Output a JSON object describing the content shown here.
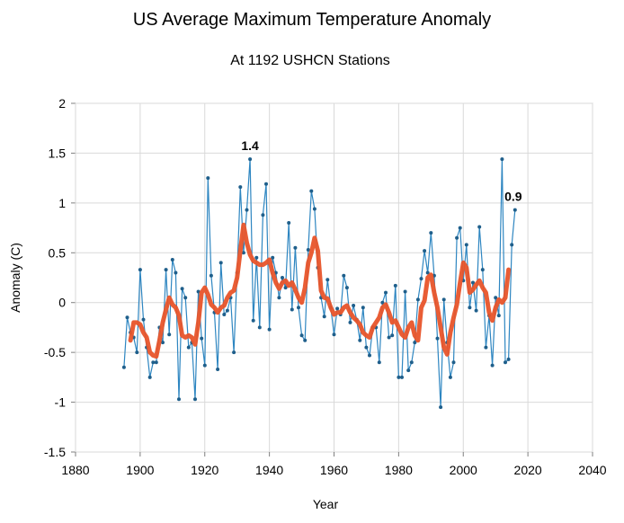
{
  "chart_data": {
    "type": "line",
    "title": "US Average Maximum Temperature Anomaly",
    "subtitle": "At 1192 USHCN Stations",
    "xlabel": "Year",
    "ylabel": "Anomaly (C)",
    "xlim": [
      1880,
      2040
    ],
    "ylim": [
      -1.5,
      2
    ],
    "xticks": [
      1880,
      1900,
      1920,
      1940,
      1960,
      1980,
      2000,
      2020,
      2040
    ],
    "yticks": [
      -1.5,
      -1,
      -0.5,
      0,
      0.5,
      1,
      1.5,
      2
    ],
    "xtick_labels": [
      "1880",
      "1900",
      "1920",
      "1940",
      "1960",
      "1980",
      "2000",
      "2020",
      "2040"
    ],
    "ytick_labels": [
      "-1.5",
      "-1",
      "-0.5",
      "0",
      "0.5",
      "1",
      "1.5",
      "2"
    ],
    "grid": true,
    "colors": {
      "annual": "#2e86c1",
      "smoothed": "#e8542a",
      "grid": "#d9d9d9"
    },
    "annotations": [
      {
        "text": "1.4",
        "x": 1934,
        "y": 1.44
      },
      {
        "text": "0.9",
        "x": 2016,
        "y": 0.93
      }
    ],
    "series": [
      {
        "x": [
          1895,
          1896,
          1897,
          1898,
          1899,
          1900,
          1901,
          1902,
          1903,
          1904,
          1905,
          1906,
          1907,
          1908,
          1909,
          1910,
          1911,
          1912,
          1913,
          1914,
          1915,
          1916,
          1917,
          1918,
          1919,
          1920,
          1921,
          1922,
          1923,
          1924,
          1925,
          1926,
          1927,
          1928,
          1929,
          1930,
          1931,
          1932,
          1933,
          1934,
          1935,
          1936,
          1937,
          1938,
          1939,
          1940,
          1941,
          1942,
          1943,
          1944,
          1945,
          1946,
          1947,
          1948,
          1949,
          1950,
          1951,
          1952,
          1953,
          1954,
          1955,
          1956,
          1957,
          1958,
          1959,
          1960,
          1961,
          1962,
          1963,
          1964,
          1965,
          1966,
          1967,
          1968,
          1969,
          1970,
          1971,
          1972,
          1973,
          1974,
          1975,
          1976,
          1977,
          1978,
          1979,
          1980,
          1981,
          1982,
          1983,
          1984,
          1985,
          1986,
          1987,
          1988,
          1989,
          1990,
          1991,
          1992,
          1993,
          1994,
          1995,
          1996,
          1997,
          1998,
          1999,
          2000,
          2001,
          2002,
          2003,
          2004,
          2005,
          2006,
          2007,
          2008,
          2009,
          2010,
          2011,
          2012,
          2013,
          2014,
          2015,
          2016
        ],
        "y": [
          -0.65,
          -0.15,
          -0.3,
          -0.35,
          -0.5,
          0.33,
          -0.17,
          -0.45,
          -0.75,
          -0.6,
          -0.6,
          -0.25,
          -0.4,
          0.33,
          -0.32,
          0.43,
          0.3,
          -0.97,
          0.14,
          0.05,
          -0.45,
          -0.4,
          -0.97,
          0.11,
          -0.36,
          -0.63,
          1.25,
          0.27,
          -0.1,
          -0.67,
          0.4,
          -0.12,
          -0.08,
          0.05,
          -0.5,
          0.3,
          1.16,
          0.5,
          0.93,
          1.44,
          -0.18,
          0.45,
          -0.25,
          0.88,
          1.19,
          -0.27,
          0.45,
          0.3,
          0.05,
          0.25,
          0.15,
          0.8,
          -0.07,
          0.55,
          -0.05,
          -0.33,
          -0.38,
          0.53,
          1.12,
          0.94,
          0.35,
          0.05,
          -0.14,
          0.23,
          -0.05,
          -0.32,
          -0.06,
          -0.12,
          0.27,
          0.15,
          -0.2,
          -0.03,
          -0.17,
          -0.38,
          -0.05,
          -0.45,
          -0.53,
          -0.25,
          -0.25,
          -0.6,
          0.0,
          0.1,
          -0.35,
          -0.33,
          0.17,
          -0.75,
          -0.75,
          0.11,
          -0.68,
          -0.6,
          -0.4,
          0.03,
          0.24,
          0.52,
          0.3,
          0.7,
          0.27,
          -0.36,
          -1.05,
          0.03,
          -0.4,
          -0.75,
          -0.6,
          0.65,
          0.75,
          0.22,
          0.58,
          -0.05,
          0.2,
          -0.08,
          0.76,
          0.33,
          -0.45,
          -0.13,
          -0.63,
          0.05,
          -0.13,
          1.44,
          -0.6,
          -0.57,
          0.58,
          0.93
        ]
      },
      {
        "x": [
          1897,
          1898,
          1899,
          1900,
          1901,
          1902,
          1903,
          1904,
          1905,
          1906,
          1907,
          1908,
          1909,
          1910,
          1911,
          1912,
          1913,
          1914,
          1915,
          1916,
          1917,
          1918,
          1919,
          1920,
          1921,
          1922,
          1923,
          1924,
          1925,
          1926,
          1927,
          1928,
          1929,
          1930,
          1931,
          1932,
          1933,
          1934,
          1935,
          1936,
          1937,
          1938,
          1939,
          1940,
          1941,
          1942,
          1943,
          1944,
          1945,
          1946,
          1947,
          1948,
          1949,
          1950,
          1951,
          1952,
          1953,
          1954,
          1955,
          1956,
          1957,
          1958,
          1959,
          1960,
          1961,
          1962,
          1963,
          1964,
          1965,
          1966,
          1967,
          1968,
          1969,
          1970,
          1971,
          1972,
          1973,
          1974,
          1975,
          1976,
          1977,
          1978,
          1979,
          1980,
          1981,
          1982,
          1983,
          1984,
          1985,
          1986,
          1987,
          1988,
          1989,
          1990,
          1991,
          1992,
          1993,
          1994,
          1995,
          1996,
          1997,
          1998,
          1999,
          2000,
          2001,
          2002,
          2003,
          2004,
          2005,
          2006,
          2007,
          2008,
          2009,
          2010,
          2011,
          2012,
          2013,
          2014
        ],
        "y": [
          -0.38,
          -0.2,
          -0.2,
          -0.22,
          -0.3,
          -0.35,
          -0.5,
          -0.53,
          -0.54,
          -0.38,
          -0.2,
          -0.07,
          0.05,
          -0.02,
          -0.05,
          -0.13,
          -0.33,
          -0.35,
          -0.33,
          -0.35,
          -0.42,
          -0.2,
          0.1,
          0.15,
          0.08,
          -0.02,
          -0.05,
          -0.1,
          -0.05,
          -0.03,
          0.05,
          0.1,
          0.12,
          0.25,
          0.52,
          0.78,
          0.6,
          0.48,
          0.42,
          0.4,
          0.38,
          0.38,
          0.4,
          0.43,
          0.3,
          0.2,
          0.14,
          0.2,
          0.22,
          0.17,
          0.2,
          0.13,
          0.05,
          0.0,
          0.15,
          0.4,
          0.5,
          0.65,
          0.52,
          0.12,
          0.05,
          0.04,
          -0.05,
          -0.12,
          -0.1,
          -0.1,
          -0.05,
          -0.03,
          -0.1,
          -0.15,
          -0.18,
          -0.22,
          -0.3,
          -0.33,
          -0.35,
          -0.25,
          -0.2,
          -0.15,
          -0.05,
          -0.02,
          -0.1,
          -0.2,
          -0.18,
          -0.25,
          -0.32,
          -0.35,
          -0.25,
          -0.2,
          -0.33,
          -0.38,
          -0.05,
          0.02,
          0.25,
          0.28,
          0.1,
          -0.05,
          -0.25,
          -0.45,
          -0.52,
          -0.3,
          -0.15,
          -0.02,
          0.2,
          0.4,
          0.35,
          0.1,
          0.13,
          0.18,
          0.22,
          0.15,
          0.1,
          -0.1,
          -0.18,
          -0.05,
          0.03,
          0.0,
          0.05,
          0.33
        ]
      }
    ]
  }
}
